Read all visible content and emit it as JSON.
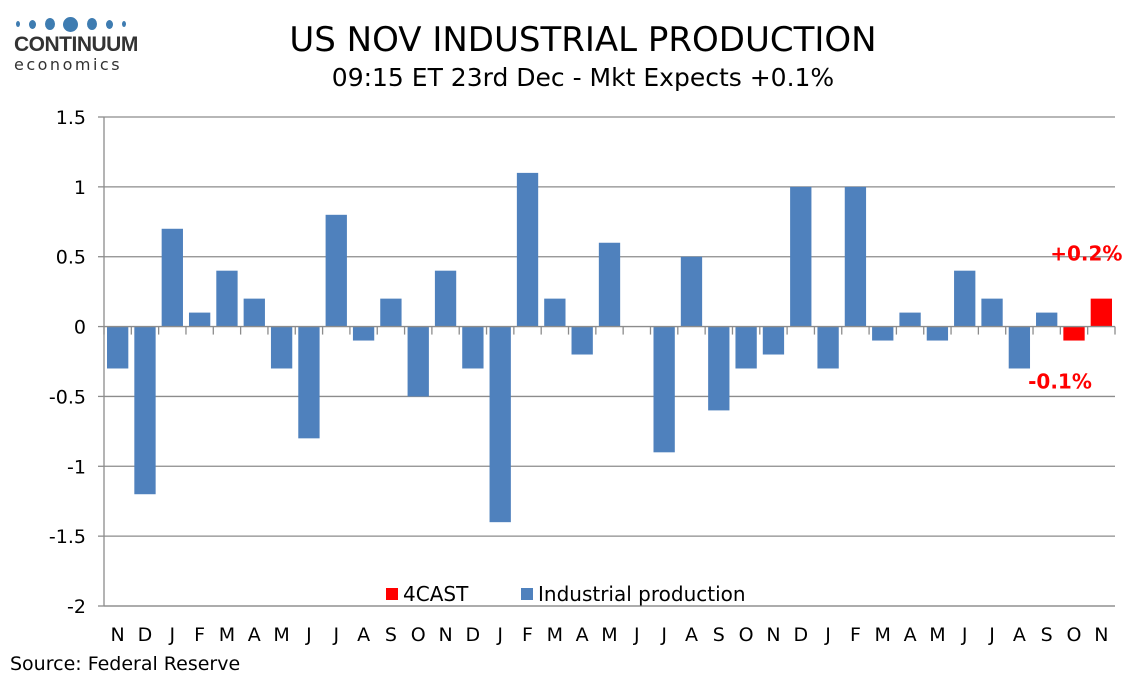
{
  "logo": {
    "name": "CONTINUUM",
    "sub": "economics"
  },
  "title": "US NOV INDUSTRIAL PRODUCTION",
  "subtitle": "09:15 ET 23rd Dec - Mkt Expects +0.1%",
  "source": "Source: Federal Reserve",
  "chart_data": {
    "type": "bar",
    "title": "US NOV INDUSTRIAL PRODUCTION",
    "subtitle": "09:15 ET 23rd Dec - Mkt Expects +0.1%",
    "xlabel": "",
    "ylabel": "",
    "ylim": [
      -2,
      1.5
    ],
    "yticks": [
      1.5,
      1,
      0.5,
      0,
      -0.5,
      -1,
      -1.5,
      -2
    ],
    "ytick_labels": [
      "1.5",
      "1",
      "0.5",
      "0",
      "-0.5",
      "-1",
      "-1.5",
      "-2"
    ],
    "grid": true,
    "legend_position": "bottom-center",
    "categories": [
      "N",
      "D",
      "J",
      "F",
      "M",
      "A",
      "M",
      "J",
      "J",
      "A",
      "S",
      "O",
      "N",
      "D",
      "J",
      "F",
      "M",
      "A",
      "M",
      "J",
      "J",
      "A",
      "S",
      "O",
      "N",
      "D",
      "J",
      "F",
      "M",
      "A",
      "M",
      "J",
      "J",
      "A",
      "S",
      "O",
      "N"
    ],
    "series": [
      {
        "name": "4CAST",
        "color": "#ff0000",
        "values": [
          null,
          null,
          null,
          null,
          null,
          null,
          null,
          null,
          null,
          null,
          null,
          null,
          null,
          null,
          null,
          null,
          null,
          null,
          null,
          null,
          null,
          null,
          null,
          null,
          null,
          null,
          null,
          null,
          null,
          null,
          null,
          null,
          null,
          null,
          null,
          -0.1,
          0.2
        ]
      },
      {
        "name": "Industrial production",
        "color": "#4f81bd",
        "values": [
          -0.3,
          -1.2,
          0.7,
          0.1,
          0.4,
          0.2,
          -0.3,
          -0.8,
          0.8,
          -0.1,
          0.2,
          -0.5,
          0.4,
          -0.3,
          -1.4,
          1.1,
          0.2,
          -0.2,
          0.6,
          0,
          -0.9,
          0.5,
          -0.6,
          -0.3,
          -0.2,
          1.0,
          -0.3,
          1.0,
          -0.1,
          0.1,
          -0.1,
          0.4,
          0.2,
          -0.3,
          0.1,
          null,
          null
        ]
      }
    ],
    "annotations": [
      {
        "text": "+0.2%",
        "category_index": 36,
        "color": "#ff0000"
      },
      {
        "text": "-0.1%",
        "category_index": 35,
        "color": "#ff0000"
      }
    ]
  }
}
